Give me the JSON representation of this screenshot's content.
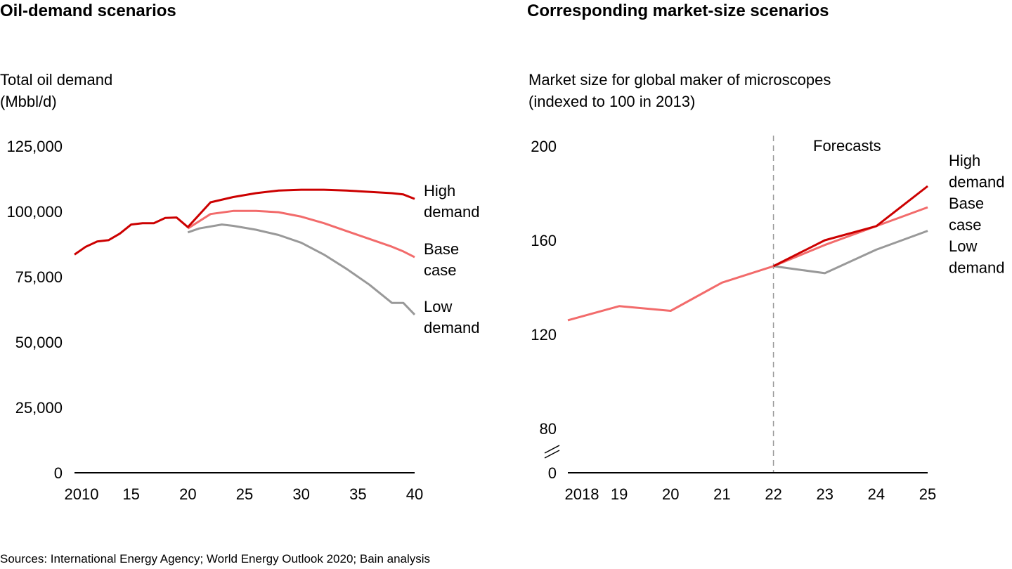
{
  "source": "Sources: International Energy Agency; World Energy Outlook 2020; Bain analysis",
  "colors": {
    "high": "#cc0000",
    "base": "#f26b6b",
    "low": "#999999",
    "axis": "#000000",
    "forecast_line": "#999999"
  },
  "chart_data": [
    {
      "type": "line",
      "title": "Oil-demand scenarios",
      "ylabel_lines": [
        "Total oil demand",
        "(Mbbl/d)"
      ],
      "xlim": [
        2010,
        2040
      ],
      "ylim": [
        0,
        125000
      ],
      "xticks": [
        2010,
        2015,
        2020,
        2025,
        2030,
        2035,
        2040
      ],
      "xtick_labels": [
        "2010",
        "15",
        "20",
        "25",
        "30",
        "35",
        "40"
      ],
      "yticks": [
        0,
        25000,
        50000,
        75000,
        100000,
        125000
      ],
      "ytick_labels": [
        "0",
        "25,000",
        "50,000",
        "75,000",
        "100,000",
        "125,000"
      ],
      "grid": false,
      "series": [
        {
          "name": "High demand",
          "label_lines": [
            "High",
            "demand"
          ],
          "color_key": "high",
          "x": [
            2010,
            2011,
            2012,
            2013,
            2014,
            2015,
            2016,
            2017,
            2018,
            2019,
            2020,
            2022,
            2024,
            2026,
            2028,
            2030,
            2032,
            2034,
            2036,
            2038,
            2039,
            2040
          ],
          "y": [
            83500,
            86500,
            88500,
            89000,
            91500,
            95000,
            95500,
            95500,
            97500,
            97700,
            94000,
            103500,
            105500,
            107000,
            108000,
            108300,
            108300,
            108000,
            107500,
            107000,
            106500,
            104800
          ]
        },
        {
          "name": "Base case",
          "label_lines": [
            "Base",
            "case"
          ],
          "color_key": "base",
          "x": [
            2020,
            2022,
            2024,
            2026,
            2028,
            2030,
            2032,
            2034,
            2036,
            2038,
            2039,
            2040
          ],
          "y": [
            93500,
            99000,
            100200,
            100200,
            99700,
            98000,
            95500,
            92500,
            89500,
            86500,
            84700,
            82500
          ]
        },
        {
          "name": "Low demand",
          "label_lines": [
            "Low",
            "demand"
          ],
          "color_key": "low",
          "x": [
            2020,
            2021,
            2023,
            2024,
            2026,
            2028,
            2030,
            2032,
            2034,
            2036,
            2038,
            2039,
            2040
          ],
          "y": [
            92000,
            93500,
            95000,
            94500,
            93000,
            91000,
            88000,
            83500,
            78000,
            72000,
            65000,
            65000,
            60500
          ]
        }
      ]
    },
    {
      "type": "line",
      "title": "Corresponding market-size scenarios",
      "ylabel_lines": [
        "Market size for global maker of microscopes",
        "(indexed to 100 in 2013)"
      ],
      "xlim": [
        2018,
        2025
      ],
      "ylim": [
        80,
        200
      ],
      "axis_break": true,
      "xticks": [
        2018,
        2019,
        2020,
        2021,
        2022,
        2023,
        2024,
        2025
      ],
      "xtick_labels": [
        "2018",
        "19",
        "20",
        "21",
        "22",
        "23",
        "24",
        "25"
      ],
      "yticks": [
        80,
        120,
        160,
        200
      ],
      "ytick_labels": [
        "80",
        "120",
        "160",
        "200"
      ],
      "zero_label": "0",
      "forecast_start": 2022,
      "annotation": "Forecasts",
      "grid": false,
      "series": [
        {
          "name": "Base case",
          "label_lines": [
            "Base",
            "case"
          ],
          "color_key": "base",
          "x": [
            2018,
            2019,
            2020,
            2021,
            2022,
            2023,
            2024,
            2025
          ],
          "y": [
            126,
            132,
            130,
            142,
            149,
            158,
            166,
            174
          ]
        },
        {
          "name": "High demand",
          "label_lines": [
            "High",
            "demand"
          ],
          "color_key": "high",
          "x": [
            2022,
            2023,
            2024,
            2025
          ],
          "y": [
            149,
            160,
            166,
            183
          ]
        },
        {
          "name": "Low demand",
          "label_lines": [
            "Low",
            "demand"
          ],
          "color_key": "low",
          "x": [
            2022,
            2023,
            2024,
            2025
          ],
          "y": [
            149,
            146,
            156,
            164
          ]
        }
      ]
    }
  ]
}
